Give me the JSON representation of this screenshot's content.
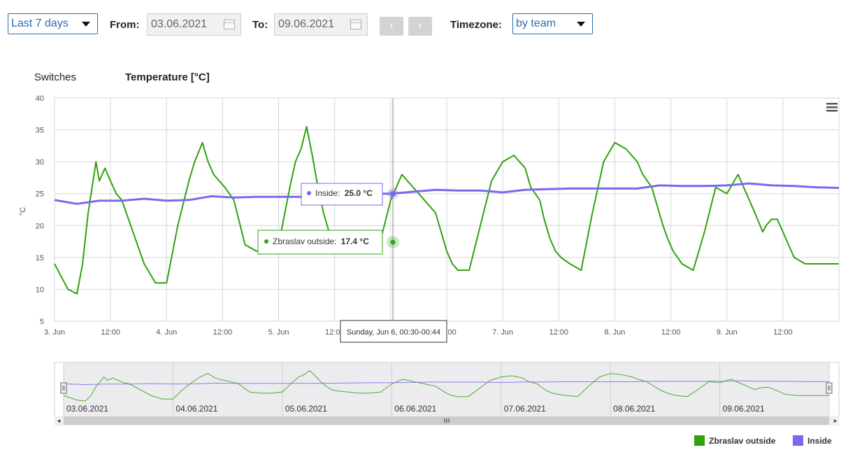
{
  "toolbar": {
    "range_value": "Last 7 days",
    "from_label": "From:",
    "from_value": "03.06.2021",
    "to_label": "To:",
    "to_value": "09.06.2021",
    "prev_icon": "‹",
    "next_icon": "›",
    "timezone_label": "Timezone:",
    "timezone_value": "by team"
  },
  "tabs": {
    "switches": "Switches",
    "temperature": "Temperature [°C]"
  },
  "menu_icon": "hamburger-menu-icon",
  "chart_data": {
    "type": "line",
    "ylabel": "°C",
    "ylim": [
      5,
      40
    ],
    "yticks": [
      5,
      10,
      15,
      20,
      25,
      30,
      35,
      40
    ],
    "xlim": [
      0,
      7
    ],
    "xtick_labels": [
      "3. Jun",
      "12:00",
      "4. Jun",
      "12:00",
      "5. Jun",
      "12:00",
      "6. Jun",
      "12:00",
      "7. Jun",
      "12:00",
      "8. Jun",
      "12:00",
      "9. Jun",
      "12:00"
    ],
    "grid": true,
    "legend_position": "bottom-right",
    "series": [
      {
        "name": "Zbraslav outside",
        "color": "#33a00e",
        "x": [
          0,
          0.12,
          0.2,
          0.25,
          0.3,
          0.37,
          0.4,
          0.45,
          0.5,
          0.55,
          0.6,
          0.7,
          0.8,
          0.9,
          1.0,
          1.1,
          1.2,
          1.25,
          1.32,
          1.37,
          1.42,
          1.47,
          1.52,
          1.6,
          1.7,
          1.8,
          1.9,
          2.0,
          2.1,
          2.15,
          2.2,
          2.25,
          2.3,
          2.35,
          2.4,
          2.45,
          2.5,
          2.55,
          2.6,
          2.7,
          2.8,
          2.9,
          3.0,
          3.1,
          3.2,
          3.25,
          3.35,
          3.4,
          3.45,
          3.5,
          3.55,
          3.6,
          3.7,
          3.8,
          3.9,
          4.0,
          4.1,
          4.2,
          4.25,
          4.33,
          4.37,
          4.42,
          4.47,
          4.52,
          4.6,
          4.7,
          4.8,
          4.9,
          5.0,
          5.1,
          5.2,
          5.25,
          5.33,
          5.38,
          5.43,
          5.47,
          5.52,
          5.6,
          5.7,
          5.8,
          5.9,
          6.0,
          6.1,
          6.2,
          6.25,
          6.32,
          6.35,
          6.4,
          6.45,
          6.5,
          6.55,
          6.6,
          6.7,
          6.8,
          6.9,
          7.0
        ],
        "y": [
          14,
          10,
          9.3,
          14,
          22,
          30,
          27,
          29,
          27,
          25,
          24,
          19,
          14,
          11,
          11,
          20,
          27,
          30,
          33,
          30,
          28,
          27,
          26,
          24,
          17,
          16,
          16,
          17,
          26,
          30,
          32,
          35.5,
          31,
          26,
          22,
          19,
          18,
          17.4,
          17,
          16,
          16,
          17,
          24,
          28,
          26,
          25,
          23,
          22,
          19,
          16,
          14,
          13,
          13,
          20,
          27,
          30,
          31,
          29,
          26,
          24,
          21,
          18,
          16,
          15,
          14,
          13,
          22,
          30,
          33,
          32,
          30,
          28,
          26,
          23,
          20,
          18,
          16,
          14,
          13,
          19,
          26,
          25,
          28,
          24,
          22,
          19,
          20,
          21,
          21,
          19,
          17,
          15,
          14,
          14,
          14,
          14
        ]
      },
      {
        "name": "Inside",
        "color": "#7b68ee",
        "x": [
          0,
          0.2,
          0.4,
          0.6,
          0.8,
          1.0,
          1.2,
          1.4,
          1.6,
          1.8,
          2.0,
          2.2,
          2.4,
          2.6,
          2.8,
          3.0,
          3.2,
          3.4,
          3.6,
          3.8,
          4.0,
          4.2,
          4.4,
          4.6,
          4.8,
          5.0,
          5.2,
          5.4,
          5.6,
          5.8,
          6.0,
          6.2,
          6.4,
          6.6,
          6.8,
          7.0
        ],
        "y": [
          24.0,
          23.4,
          23.9,
          23.9,
          24.2,
          23.9,
          24.0,
          24.6,
          24.4,
          24.5,
          24.5,
          24.5,
          24.5,
          24.8,
          25.0,
          25.0,
          25.3,
          25.6,
          25.5,
          25.5,
          25.2,
          25.6,
          25.7,
          25.8,
          25.8,
          25.8,
          25.8,
          26.3,
          26.2,
          26.2,
          26.3,
          26.6,
          26.3,
          26.2,
          26.0,
          25.9
        ]
      }
    ],
    "tooltip": {
      "header": "Sunday, Jun 6, 00:30-00:44",
      "at_x": 3.02,
      "inside_label": "Inside:",
      "inside_value": "25.0 °C",
      "outside_label": "Zbraslav outside:",
      "outside_value": "17.4 °C"
    },
    "navigator": {
      "date_labels": [
        "03.06.2021",
        "04.06.2021",
        "05.06.2021",
        "06.06.2021",
        "07.06.2021",
        "08.06.2021",
        "09.06.2021"
      ],
      "scroll_icon": "scroll-grip-icon"
    }
  }
}
